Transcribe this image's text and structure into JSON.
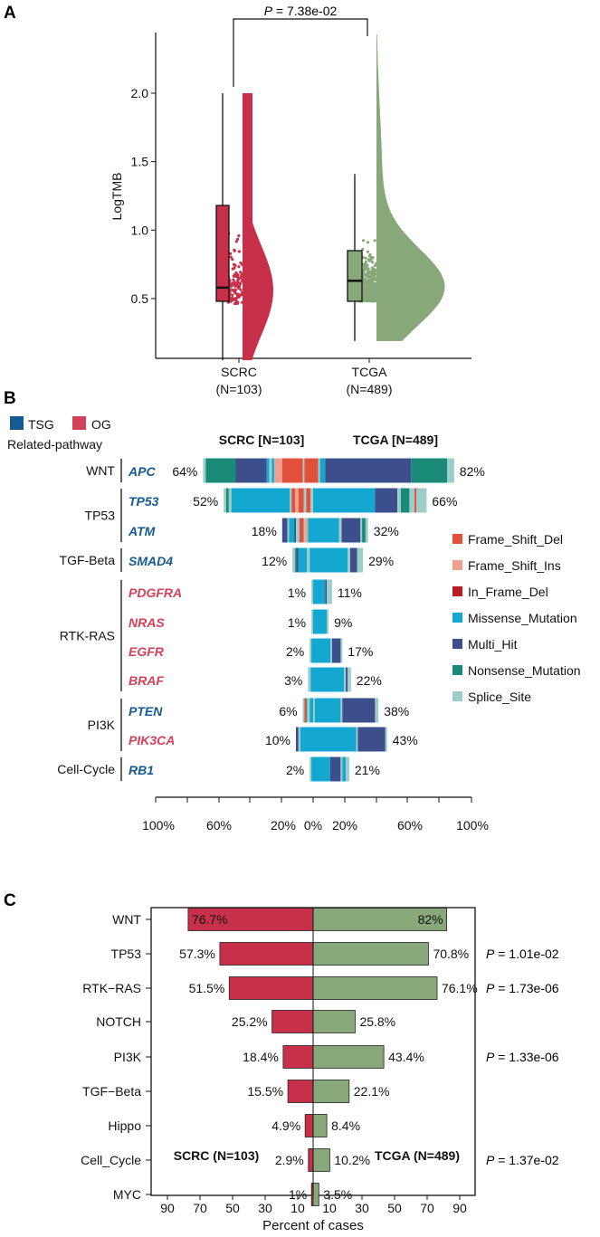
{
  "colors": {
    "scrc": "#c8304a",
    "tcga": "#87a879",
    "tsg": "#155a91",
    "og": "#d6405a",
    "Frame_Shift_Del": "#e0503a",
    "Frame_Shift_Ins": "#eea08e",
    "In_Frame_Del": "#bb1a22",
    "Missense_Mutation": "#14a8d0",
    "Multi_Hit": "#3c4f8c",
    "Nonsense_Mutation": "#1a8a78",
    "Splice_Site": "#9ccdc6"
  },
  "panels": {
    "a": "A",
    "b": "B",
    "c": "C"
  },
  "chart_data": [
    {
      "type": "raincloud",
      "panel": "A",
      "ylabel": "LogTMB",
      "yticks": [
        0.5,
        1.0,
        1.5,
        2.0
      ],
      "ytick_labels": [
        "0.5",
        "1.0",
        "1.5",
        "2.0"
      ],
      "ylim": [
        0.15,
        2.45
      ],
      "pvalue_prefix": "P",
      "pvalue_text": " = 7.38e-02",
      "groups": [
        {
          "name": "SCRC",
          "n_label": "(N=103)",
          "n": 103,
          "min": 0.05,
          "q1": 0.48,
          "median": 0.58,
          "q3": 1.18,
          "max": 2.0
        },
        {
          "name": "TCGA",
          "n_label": "(N=489)",
          "n": 489,
          "min": 0.19,
          "q1": 0.48,
          "median": 0.63,
          "q3": 0.85,
          "max": 1.41,
          "data_max": 2.43
        }
      ]
    },
    {
      "type": "bar",
      "panel": "B",
      "subtype": "mirrored stacked bar",
      "left_title": "SCRC [N=103]",
      "right_title": "TCGA [N=489]",
      "legend_gene_type": [
        {
          "key": "tsg",
          "label": "TSG"
        },
        {
          "key": "og",
          "label": "OG"
        }
      ],
      "pathway_header": "Related-pathway",
      "variant_legend": [
        "Frame_Shift_Del",
        "Frame_Shift_Ins",
        "In_Frame_Del",
        "Missense_Mutation",
        "Multi_Hit",
        "Nonsense_Mutation",
        "Splice_Site"
      ],
      "xticks": [
        "100%",
        "60%",
        "20%",
        "0%",
        "20%",
        "60%",
        "100%"
      ],
      "pathways": [
        {
          "name": "WNT",
          "genes": [
            "APC"
          ]
        },
        {
          "name": "TP53",
          "genes": [
            "TP53",
            "ATM"
          ]
        },
        {
          "name": "TGF-Beta",
          "genes": [
            "SMAD4"
          ]
        },
        {
          "name": "RTK-RAS",
          "genes": [
            "PDGFRA",
            "NRAS",
            "EGFR",
            "BRAF"
          ]
        },
        {
          "name": "PI3K",
          "genes": [
            "PTEN",
            "PIK3CA"
          ]
        },
        {
          "name": "Cell-Cycle",
          "genes": [
            "RB1"
          ]
        }
      ],
      "genes": [
        {
          "gene": "APC",
          "type": "tsg",
          "scrc_pct": 64,
          "scrc_label": "64%",
          "tcga_pct": 82,
          "tcga_label": "82%",
          "scrc": [
            [
              "Splice_Site",
              1.5
            ],
            [
              "Nonsense_Mutation",
              17.5
            ],
            [
              "Multi_Hit",
              18
            ],
            [
              "Missense_Mutation",
              1.5
            ],
            [
              "Splice_Site",
              1.5
            ],
            [
              "Missense_Mutation",
              1.5
            ],
            [
              "Frame_Shift_Ins",
              4.5
            ],
            [
              "Frame_Shift_Del",
              12
            ],
            [
              "Splice_Site",
              1
            ],
            [
              "Frame_Shift_Del",
              5
            ]
          ],
          "tcga": [
            [
              "Frame_Shift_Del",
              3
            ],
            [
              "Splice_Site",
              1
            ],
            [
              "Missense_Mutation",
              3
            ],
            [
              "Multi_Hit",
              50
            ],
            [
              "Nonsense_Mutation",
              21
            ],
            [
              "Splice_Site",
              4
            ]
          ]
        },
        {
          "gene": "TP53",
          "type": "tsg",
          "scrc_pct": 52,
          "scrc_label": "52%",
          "tcga_pct": 66,
          "tcga_label": "66%",
          "scrc": [
            [
              "Splice_Site",
              1.5
            ],
            [
              "Nonsense_Mutation",
              1.5
            ],
            [
              "Splice_Site",
              1.5
            ],
            [
              "Missense_Mutation",
              34
            ],
            [
              "Splice_Site",
              1
            ],
            [
              "Frame_Shift_Del",
              2
            ],
            [
              "Frame_Shift_Ins",
              2
            ],
            [
              "Frame_Shift_Del",
              3
            ],
            [
              "Splice_Site",
              1.5
            ],
            [
              "Frame_Shift_Del",
              2.5
            ],
            [
              "Splice_Site",
              1.5
            ]
          ],
          "tcga": [
            [
              "Missense_Mutation",
              36
            ],
            [
              "Multi_Hit",
              13
            ],
            [
              "Splice_Site",
              2
            ],
            [
              "Nonsense_Mutation",
              5
            ],
            [
              "Splice_Site",
              3
            ],
            [
              "Frame_Shift_Del",
              1
            ],
            [
              "Splice_Site",
              6
            ]
          ]
        },
        {
          "gene": "ATM",
          "type": "tsg",
          "scrc_pct": 18,
          "scrc_label": "18%",
          "tcga_pct": 32,
          "tcga_label": "32%",
          "scrc": [
            [
              "Multi_Hit",
              3
            ],
            [
              "Splice_Site",
              1
            ],
            [
              "Missense_Mutation",
              3
            ],
            [
              "Multi_Hit",
              1
            ],
            [
              "Splice_Site",
              2
            ],
            [
              "Frame_Shift_Del",
              2.5
            ],
            [
              "Splice_Site",
              1
            ],
            [
              "Frame_Shift_Ins",
              1.5
            ],
            [
              "Missense_Mutation",
              3
            ]
          ],
          "tcga": [
            [
              "Missense_Mutation",
              15
            ],
            [
              "Splice_Site",
              1.5
            ],
            [
              "Multi_Hit",
              11
            ],
            [
              "Splice_Site",
              1
            ],
            [
              "Nonsense_Mutation",
              2
            ],
            [
              "Splice_Site",
              1.5
            ]
          ]
        },
        {
          "gene": "SMAD4",
          "type": "tsg",
          "scrc_pct": 12,
          "scrc_label": "12%",
          "tcga_pct": 29,
          "tcga_label": "29%",
          "scrc": [
            [
              "Splice_Site",
              1.5
            ],
            [
              "Nonsense_Mutation",
              1
            ],
            [
              "Multi_Hit",
              1
            ],
            [
              "Missense_Mutation",
              5
            ],
            [
              "Splice_Site",
              1.5
            ],
            [
              "Missense_Mutation",
              2
            ]
          ],
          "tcga": [
            [
              "Missense_Mutation",
              20
            ],
            [
              "Splice_Site",
              1.5
            ],
            [
              "Multi_Hit",
              4
            ],
            [
              "Splice_Site",
              3.5
            ]
          ]
        },
        {
          "gene": "PDGFRA",
          "type": "og",
          "scrc_pct": 1,
          "scrc_label": "1%",
          "tcga_pct": 11,
          "tcga_label": "11%",
          "scrc": [
            [
              "Splice_Site",
              1
            ]
          ],
          "tcga": [
            [
              "Missense_Mutation",
              7
            ],
            [
              "Multi_Hit",
              1
            ],
            [
              "Splice_Site",
              3
            ]
          ]
        },
        {
          "gene": "NRAS",
          "type": "og",
          "scrc_pct": 1,
          "scrc_label": "1%",
          "tcga_pct": 9,
          "tcga_label": "9%",
          "scrc": [
            [
              "Splice_Site",
              1
            ]
          ],
          "tcga": [
            [
              "Missense_Mutation",
              8
            ],
            [
              "Splice_Site",
              1
            ]
          ]
        },
        {
          "gene": "EGFR",
          "type": "og",
          "scrc_pct": 2,
          "scrc_label": "2%",
          "tcga_pct": 17,
          "tcga_label": "17%",
          "scrc": [
            [
              "Splice_Site",
              1
            ],
            [
              "Missense_Mutation",
              1
            ]
          ],
          "tcga": [
            [
              "Missense_Mutation",
              10
            ],
            [
              "Splice_Site",
              1
            ],
            [
              "Multi_Hit",
              5
            ],
            [
              "Splice_Site",
              1
            ]
          ]
        },
        {
          "gene": "BRAF",
          "type": "og",
          "scrc_pct": 3,
          "scrc_label": "3%",
          "tcga_pct": 22,
          "tcga_label": "22%",
          "scrc": [
            [
              "Splice_Site",
              1.5
            ],
            [
              "Missense_Mutation",
              1.5
            ]
          ],
          "tcga": [
            [
              "Missense_Mutation",
              18
            ],
            [
              "Splice_Site",
              1
            ],
            [
              "Multi_Hit",
              1
            ],
            [
              "Splice_Site",
              2
            ]
          ]
        },
        {
          "gene": "PTEN",
          "type": "tsg",
          "scrc_pct": 6,
          "scrc_label": "6%",
          "tcga_pct": 38,
          "tcga_label": "38%",
          "scrc": [
            [
              "Splice_Site",
              1
            ],
            [
              "Frame_Shift_Del",
              1
            ],
            [
              "Nonsense_Mutation",
              0.5
            ],
            [
              "Splice_Site",
              1.5
            ],
            [
              "Missense_Mutation",
              2
            ]
          ],
          "tcga": [
            [
              "Splice_Site",
              1
            ],
            [
              "Missense_Mutation",
              15
            ],
            [
              "Splice_Site",
              1
            ],
            [
              "Multi_Hit",
              19
            ],
            [
              "Splice_Site",
              2
            ]
          ]
        },
        {
          "gene": "PIK3CA",
          "type": "og",
          "scrc_pct": 10,
          "scrc_label": "10%",
          "tcga_pct": 43,
          "tcga_label": "43%",
          "scrc": [
            [
              "Multi_Hit",
              1.5
            ],
            [
              "Splice_Site",
              1
            ],
            [
              "Missense_Mutation",
              7.5
            ]
          ],
          "tcga": [
            [
              "Missense_Mutation",
              25
            ],
            [
              "Splice_Site",
              1
            ],
            [
              "Multi_Hit",
              16
            ],
            [
              "Splice_Site",
              1
            ]
          ]
        },
        {
          "gene": "RB1",
          "type": "tsg",
          "scrc_pct": 2,
          "scrc_label": "2%",
          "tcga_pct": 21,
          "tcga_label": "21%",
          "scrc": [
            [
              "Splice_Site",
              1
            ],
            [
              "Missense_Mutation",
              1
            ]
          ],
          "tcga": [
            [
              "Missense_Mutation",
              10
            ],
            [
              "Multi_Hit",
              6
            ],
            [
              "Splice_Site",
              1
            ],
            [
              "Missense_Mutation",
              2
            ],
            [
              "Splice_Site",
              2
            ]
          ]
        }
      ]
    },
    {
      "type": "bar",
      "panel": "C",
      "subtype": "mirrored horizontal bar",
      "xlabel": "Percent of cases",
      "xticks": [
        "90",
        "70",
        "50",
        "30",
        "10",
        "10",
        "30",
        "50",
        "70",
        "90"
      ],
      "left_group": "SCRC (N=103)",
      "right_group": "TCGA (N=489)",
      "categories": [
        "WNT",
        "TP53",
        "RTK−RAS",
        "NOTCH",
        "PI3K",
        "TGF−Beta",
        "Hippo",
        "Cell_Cycle",
        "MYC"
      ],
      "series": [
        {
          "name": "SCRC (N=103)",
          "values": [
            76.7,
            57.3,
            51.5,
            25.2,
            18.4,
            15.5,
            4.9,
            2.9,
            1
          ],
          "labels": [
            "76.7%",
            "57.3%",
            "51.5%",
            "25.2%",
            "18.4%",
            "15.5%",
            "4.9%",
            "2.9%",
            "1%"
          ]
        },
        {
          "name": "TCGA (N=489)",
          "values": [
            82,
            70.8,
            76.1,
            25.8,
            43.4,
            22.1,
            8.4,
            10.2,
            3.5
          ],
          "labels": [
            "82%",
            "70.8%",
            "76.1%",
            "25.8%",
            "43.4%",
            "22.1%",
            "8.4%",
            "10.2%",
            "3.5%"
          ]
        }
      ],
      "pvalues": [
        {
          "row": 1,
          "prefix": "P",
          "text": " = 1.01e-02"
        },
        {
          "row": 2,
          "prefix": "P",
          "text": " = 1.73e-06"
        },
        {
          "row": 4,
          "prefix": "P",
          "text": " = 1.33e-06"
        },
        {
          "row": 7,
          "prefix": "P",
          "text": " = 1.37e-02"
        }
      ]
    }
  ]
}
